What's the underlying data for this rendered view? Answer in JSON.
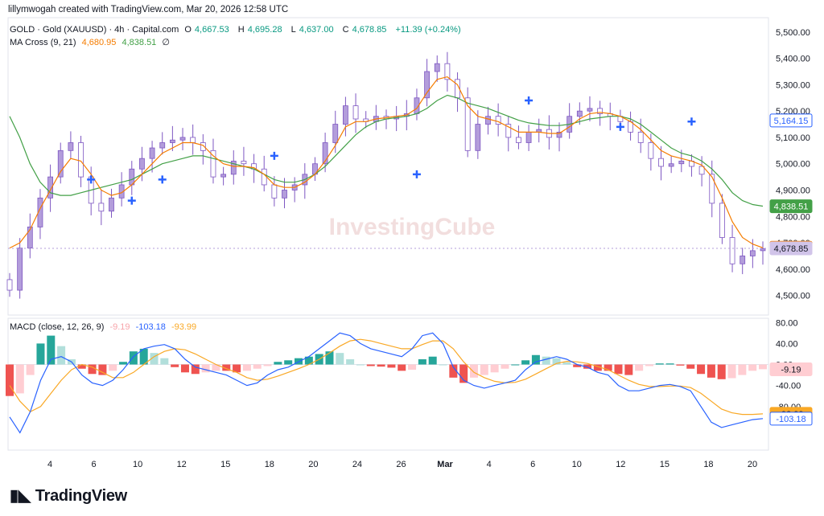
{
  "credit": "lillymwogah created with TradingView.com, Mar 20, 2026 12:58 UTC",
  "legend": {
    "symbol": "GOLD · Gold (XAUUSD) · 4h · Capital.com",
    "o_label": "O",
    "o": "4,667.53",
    "h_label": "H",
    "h": "4,695.28",
    "l_label": "L",
    "l": "4,637.00",
    "c_label": "C",
    "c": "4,678.85",
    "change": "+11.39 (+0.24%)",
    "ma_label": "MA Cross (9, 21)",
    "ma_fast": "4,680.95",
    "ma_slow": "4,838.51",
    "ma_icon": "∅",
    "macd_label": "MACD (close, 12, 26, 9)",
    "macd_hist": "-9.19",
    "macd_line": "-103.18",
    "macd_signal": "-93.99"
  },
  "watermark": "InvestingCube",
  "logo": "TradingView",
  "colors": {
    "up": "#089981",
    "down": "#f23645",
    "candle_up": "#b39ddb",
    "ma_fast": "#f57c00",
    "ma_slow": "#43a047",
    "macd": "#2962ff",
    "signal": "#f9a825",
    "hist_up_strong": "#26a69a",
    "hist_up_weak": "#b2dfdb",
    "hist_down_strong": "#ef5350",
    "hist_down_weak": "#ffcdd2",
    "cross": "#2962ff"
  },
  "chart_data": [
    {
      "type": "candlestick",
      "x_ticks": [
        "4",
        "6",
        "10",
        "12",
        "15",
        "18",
        "20",
        "24",
        "26",
        "Mar",
        "4",
        "6",
        "10",
        "12",
        "15",
        "18",
        "20"
      ],
      "y_ticks": [
        "5,500.00",
        "5,400.00",
        "5,300.00",
        "5,200.00",
        "5,100.00",
        "5,000.00",
        "4,900.00",
        "4,800.00",
        "4,700.00",
        "4,600.00",
        "4,500.00"
      ],
      "ylim": [
        4450,
        5530
      ],
      "price_tags": [
        {
          "label": "5,164.15",
          "value": 5164.15,
          "style": "blue"
        },
        {
          "label": "4,838.51",
          "value": 4838.51,
          "style": "green"
        },
        {
          "label": "4,680.95",
          "value": 4680.95,
          "style": "orange"
        },
        {
          "label": "4,678.85",
          "value": 4678.85,
          "style": "purple"
        }
      ],
      "close_path": [
        4520,
        4680,
        4760,
        4870,
        4950,
        5050,
        5080,
        4950,
        4850,
        4820,
        4870,
        4920,
        4980,
        5020,
        5060,
        5080,
        5090,
        5100,
        5080,
        5050,
        4950,
        4960,
        5010,
        5000,
        4980,
        4920,
        4870,
        4900,
        4920,
        4960,
        5000,
        5080,
        5150,
        5220,
        5170,
        5160,
        5180,
        5170,
        5180,
        5190,
        5250,
        5350,
        5380,
        5320,
        5250,
        5050,
        5150,
        5180,
        5150,
        5100,
        5080,
        5120,
        5130,
        5100,
        5120,
        5180,
        5200,
        5210,
        5190,
        5180,
        5160,
        5120,
        5080,
        5020,
        4990,
        5000,
        5010,
        4990,
        4960,
        4850,
        4720,
        4620,
        4650,
        4670,
        4678
      ],
      "ma_fast_path": [
        4680,
        4700,
        4750,
        4830,
        4900,
        4970,
        5020,
        5010,
        4960,
        4900,
        4880,
        4890,
        4920,
        4960,
        5000,
        5040,
        5060,
        5080,
        5080,
        5070,
        5030,
        5000,
        4990,
        4990,
        4985,
        4960,
        4920,
        4910,
        4910,
        4930,
        4960,
        5010,
        5070,
        5140,
        5160,
        5160,
        5170,
        5175,
        5180,
        5185,
        5210,
        5270,
        5320,
        5330,
        5300,
        5220,
        5180,
        5170,
        5160,
        5140,
        5120,
        5120,
        5120,
        5115,
        5115,
        5140,
        5170,
        5190,
        5195,
        5190,
        5180,
        5160,
        5130,
        5090,
        5050,
        5030,
        5020,
        5010,
        4995,
        4950,
        4870,
        4780,
        4720,
        4695,
        4681
      ],
      "ma_slow_path": [
        5180,
        5100,
        5000,
        4930,
        4890,
        4880,
        4880,
        4890,
        4900,
        4910,
        4920,
        4930,
        4940,
        4960,
        4980,
        5000,
        5010,
        5020,
        5030,
        5030,
        5020,
        5010,
        5000,
        4990,
        4980,
        4960,
        4940,
        4930,
        4930,
        4940,
        4960,
        4990,
        5030,
        5070,
        5110,
        5140,
        5160,
        5170,
        5175,
        5180,
        5190,
        5210,
        5240,
        5260,
        5250,
        5230,
        5220,
        5210,
        5195,
        5180,
        5165,
        5155,
        5150,
        5145,
        5145,
        5150,
        5160,
        5170,
        5175,
        5180,
        5180,
        5170,
        5150,
        5120,
        5090,
        5060,
        5040,
        5030,
        5010,
        4980,
        4940,
        4890,
        4860,
        4845,
        4839
      ],
      "cross_markers": [
        {
          "i": 8,
          "v": 4940
        },
        {
          "i": 12,
          "v": 4860
        },
        {
          "i": 15,
          "v": 4940
        },
        {
          "i": 26,
          "v": 5030
        },
        {
          "i": 40,
          "v": 4960
        },
        {
          "i": 51,
          "v": 5240
        },
        {
          "i": 60,
          "v": 5140
        },
        {
          "i": 67,
          "v": 5160
        }
      ]
    },
    {
      "type": "macd",
      "y_ticks": [
        "80.00",
        "40.00",
        "0.00",
        "-40.00",
        "-80.00"
      ],
      "ylim": [
        -160,
        85
      ],
      "value_tags": [
        {
          "label": "-9.19",
          "value": -9.19,
          "style": "pink"
        },
        {
          "label": "-93.99",
          "value": -93.99,
          "style": "yellow"
        },
        {
          "label": "-103.18",
          "value": -103.18,
          "style": "blue"
        }
      ],
      "macd_path": [
        -100,
        -130,
        -90,
        -30,
        10,
        15,
        5,
        -20,
        -35,
        -40,
        -30,
        -10,
        15,
        30,
        35,
        38,
        30,
        10,
        -5,
        -10,
        -15,
        -20,
        -30,
        -40,
        -35,
        -20,
        -10,
        -5,
        5,
        15,
        30,
        45,
        60,
        55,
        40,
        30,
        25,
        20,
        15,
        30,
        55,
        60,
        40,
        -5,
        -30,
        -40,
        -45,
        -40,
        -35,
        -30,
        -10,
        5,
        10,
        15,
        10,
        0,
        -5,
        -15,
        -20,
        -40,
        -50,
        -50,
        -45,
        -40,
        -38,
        -42,
        -50,
        -80,
        -110,
        -120,
        -115,
        -110,
        -105,
        -103
      ],
      "signal_path": [
        -40,
        -70,
        -90,
        -80,
        -55,
        -30,
        -10,
        0,
        -5,
        -15,
        -25,
        -25,
        -15,
        0,
        15,
        25,
        30,
        28,
        20,
        10,
        0,
        -8,
        -15,
        -25,
        -30,
        -28,
        -22,
        -15,
        -8,
        0,
        10,
        22,
        35,
        45,
        48,
        45,
        40,
        35,
        30,
        30,
        38,
        45,
        45,
        30,
        5,
        -15,
        -25,
        -32,
        -35,
        -34,
        -28,
        -18,
        -8,
        2,
        6,
        5,
        2,
        -4,
        -10,
        -20,
        -30,
        -38,
        -42,
        -42,
        -41,
        -41,
        -44,
        -55,
        -70,
        -85,
        -92,
        -95,
        -95,
        -94
      ],
      "hist": [
        -60,
        -55,
        -20,
        40,
        55,
        35,
        10,
        -8,
        -18,
        -20,
        -12,
        5,
        25,
        30,
        22,
        12,
        -5,
        -15,
        -18,
        -15,
        -12,
        -12,
        -15,
        -12,
        -8,
        -3,
        5,
        8,
        12,
        15,
        20,
        25,
        22,
        10,
        0,
        -3,
        -4,
        -6,
        -12,
        -10,
        10,
        15,
        0,
        -25,
        -35,
        -25,
        -20,
        -15,
        -8,
        0,
        8,
        18,
        15,
        12,
        4,
        -5,
        -8,
        -12,
        -12,
        -18,
        -20,
        -12,
        -3,
        2,
        2,
        -2,
        -8,
        -18,
        -25,
        -28,
        -26,
        -20,
        -12,
        -9
      ]
    }
  ]
}
